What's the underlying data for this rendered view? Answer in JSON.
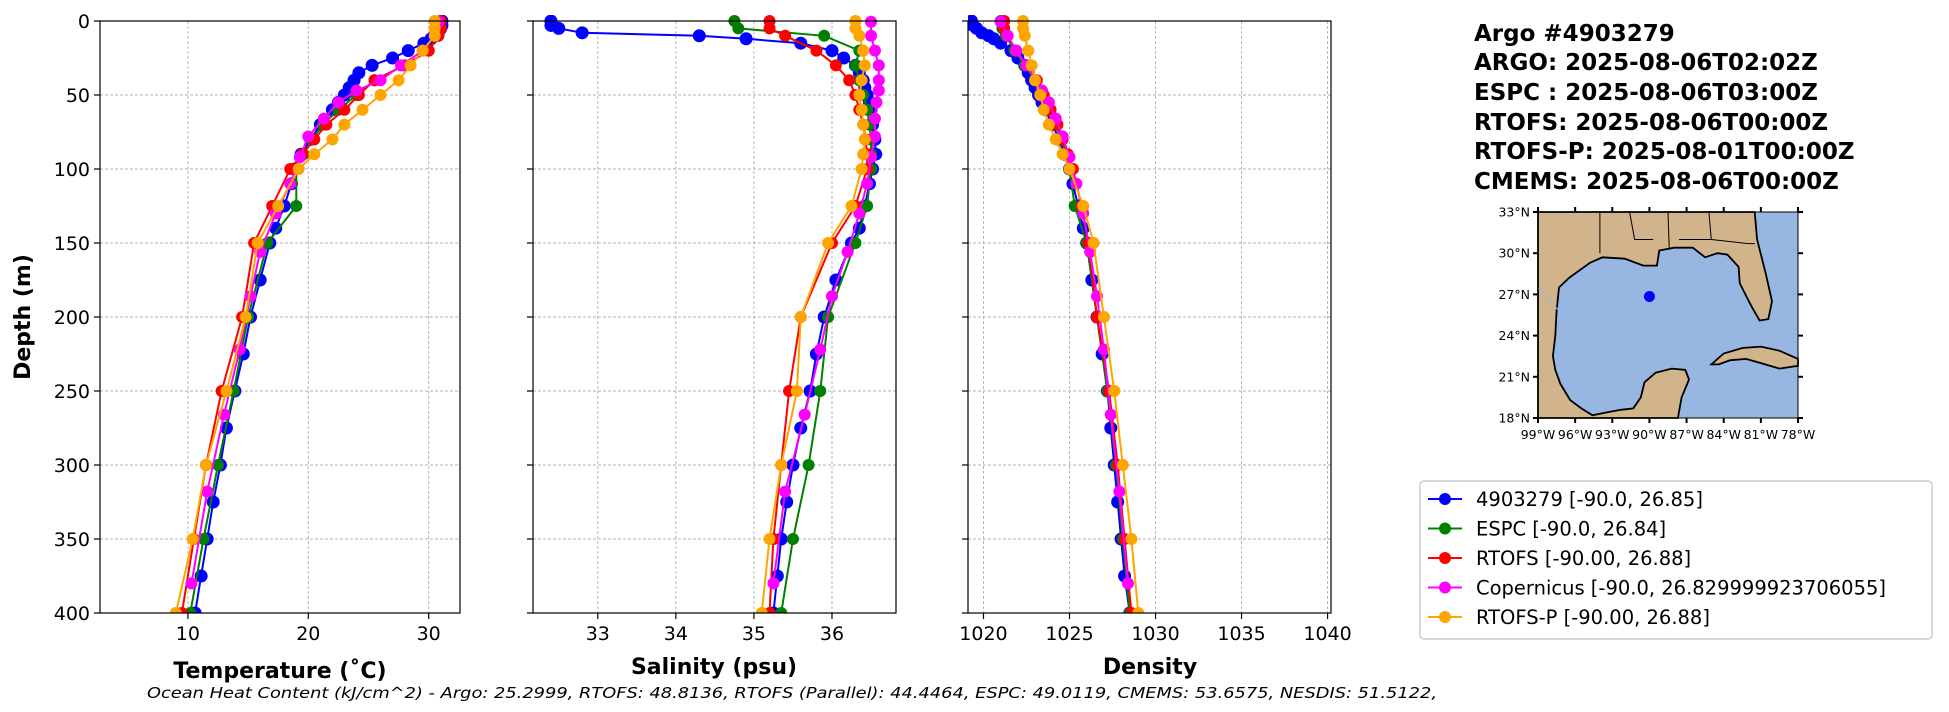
{
  "title_lines": [
    "Argo #4903279",
    "ARGO: 2025-08-06T02:02Z",
    "ESPC : 2025-08-06T03:00Z",
    "RTOFS: 2025-08-06T00:00Z",
    "RTOFS-P: 2025-08-01T00:00Z",
    "CMEMS: 2025-08-06T00:00Z"
  ],
  "footer": "Ocean Heat Content (kJ/cm^2) - Argo: 25.2999,  RTOFS: 48.8136,  RTOFS (Parallel): 44.4464,  ESPC: 49.0119,  CMEMS: 53.6575,  NESDIS: 51.5122,",
  "chart_data": [
    {
      "type": "line",
      "id": "temp",
      "xlabel": "Temperature (˚C)",
      "ylabel": "Depth (m)",
      "xlim": [
        2.7,
        32.6
      ],
      "ylim": [
        400,
        0
      ],
      "xticks": [
        10,
        20,
        30
      ],
      "yticks": [
        0,
        50,
        100,
        150,
        200,
        250,
        300,
        350,
        400
      ],
      "grid": true,
      "field": "temp"
    },
    {
      "type": "line",
      "id": "sal",
      "xlabel": "Salinity (psu)",
      "ylabel": "",
      "xlim": [
        32.17,
        36.82
      ],
      "ylim": [
        400,
        0
      ],
      "xticks": [
        33,
        34,
        35,
        36
      ],
      "yticks": [
        0,
        50,
        100,
        150,
        200,
        250,
        300,
        350,
        400
      ],
      "grid": true,
      "field": "sal"
    },
    {
      "type": "line",
      "id": "dens",
      "xlabel": "Density",
      "ylabel": "",
      "xlim": [
        1019.1,
        1040.2
      ],
      "ylim": [
        400,
        0
      ],
      "xticks": [
        1020,
        1025,
        1030,
        1035,
        1040
      ],
      "yticks": [
        0,
        50,
        100,
        150,
        200,
        250,
        300,
        350,
        400
      ],
      "grid": true,
      "field": "dens"
    }
  ],
  "series": [
    {
      "name": "4903279",
      "legend": "4903279 [-90.0, 26.85]",
      "color": "#0000ff",
      "depth": [
        0,
        3,
        5,
        8,
        10,
        12,
        15,
        20,
        25,
        30,
        35,
        40,
        45,
        50,
        55,
        60,
        70,
        80,
        90,
        100,
        110,
        125,
        140,
        150,
        175,
        200,
        225,
        250,
        275,
        300,
        325,
        350,
        375,
        400
      ],
      "temp": [
        31.1,
        31.1,
        31,
        30.8,
        30.5,
        30.2,
        29.6,
        28.3,
        27,
        25.3,
        24.2,
        23.8,
        23.4,
        23,
        22.5,
        22,
        21,
        20.2,
        19.4,
        18.9,
        18.6,
        18,
        17.3,
        16.8,
        16,
        15.2,
        14.6,
        13.9,
        13.2,
        12.7,
        12.1,
        11.6,
        11.1,
        10.6
      ],
      "sal": [
        32.4,
        32.4,
        32.5,
        32.8,
        34.3,
        34.9,
        35.6,
        36.0,
        36.15,
        36.3,
        36.35,
        36.4,
        36.42,
        36.45,
        36.48,
        36.5,
        36.52,
        36.55,
        36.56,
        36.52,
        36.48,
        36.42,
        36.35,
        36.25,
        36.05,
        35.9,
        35.8,
        35.72,
        35.6,
        35.5,
        35.42,
        35.35,
        35.3,
        35.25
      ],
      "dens": [
        1019.3,
        1019.4,
        1019.6,
        1019.9,
        1020.3,
        1020.6,
        1021,
        1021.6,
        1022,
        1022.4,
        1022.6,
        1022.8,
        1023,
        1023.2,
        1023.4,
        1023.6,
        1024,
        1024.4,
        1024.7,
        1025,
        1025.2,
        1025.5,
        1025.8,
        1026,
        1026.3,
        1026.6,
        1026.9,
        1027.2,
        1027.4,
        1027.6,
        1027.8,
        1028,
        1028.2,
        1028.5
      ]
    },
    {
      "name": "ESPC",
      "legend": "ESPC [-90.0, 26.84]",
      "color": "#008000",
      "depth": [
        0,
        5,
        10,
        20,
        30,
        40,
        50,
        60,
        70,
        80,
        90,
        100,
        125,
        150,
        200,
        250,
        300,
        350,
        400
      ],
      "temp": [
        31.0,
        31.0,
        30.8,
        30.0,
        28.0,
        25.5,
        24.0,
        22.5,
        21.2,
        20.3,
        19.6,
        19.0,
        19.0,
        16.6,
        15.0,
        13.8,
        12.5,
        11.3,
        10.2
      ],
      "sal": [
        34.75,
        34.8,
        35.9,
        36.35,
        36.3,
        36.35,
        36.4,
        36.45,
        36.48,
        36.5,
        36.5,
        36.5,
        36.45,
        36.3,
        35.95,
        35.85,
        35.7,
        35.5,
        35.35
      ],
      "dens": [
        1021,
        1021.1,
        1021.3,
        1021.8,
        1022.4,
        1023,
        1023.4,
        1023.8,
        1024.2,
        1024.5,
        1024.8,
        1025,
        1025.3,
        1026,
        1026.6,
        1027.2,
        1027.7,
        1028.1,
        1028.5
      ]
    },
    {
      "name": "RTOFS",
      "legend": "RTOFS [-90.00, 26.88]",
      "color": "#ff0000",
      "depth": [
        0,
        5,
        10,
        20,
        30,
        40,
        50,
        60,
        70,
        80,
        90,
        100,
        125,
        150,
        200,
        250,
        300,
        350,
        400
      ],
      "temp": [
        31.0,
        31.0,
        30.8,
        30.0,
        28.0,
        25.5,
        24.2,
        23.0,
        21.5,
        20.5,
        19.5,
        18.5,
        17.0,
        15.5,
        14.5,
        12.8,
        11.5,
        10.5,
        9.5
      ],
      "sal": [
        35.2,
        35.2,
        35.4,
        35.8,
        36.05,
        36.22,
        36.3,
        36.35,
        36.4,
        36.43,
        36.45,
        36.45,
        36.3,
        36.0,
        35.6,
        35.45,
        35.35,
        35.25,
        35.2
      ],
      "dens": [
        1021.2,
        1021.2,
        1021.4,
        1021.9,
        1022.5,
        1023.1,
        1023.5,
        1023.9,
        1024.3,
        1024.6,
        1024.9,
        1025.2,
        1025.7,
        1026.1,
        1026.6,
        1027.3,
        1027.8,
        1028.2,
        1028.6
      ]
    },
    {
      "name": "Copernicus",
      "legend": "Copernicus [-90.0, 26.829999923706055]",
      "color": "#ff00ff",
      "depth": [
        0.5,
        10,
        20,
        30,
        40,
        47,
        55,
        66,
        78,
        92,
        110,
        130,
        156,
        186,
        222,
        266,
        318,
        380
      ],
      "temp": [
        30.8,
        30.5,
        29.5,
        27.7,
        26.0,
        24.0,
        22.5,
        21.3,
        20.0,
        19.3,
        18.5,
        17.3,
        16.0,
        15.2,
        14.3,
        13.0,
        11.6,
        10.3
      ],
      "sal": [
        36.5,
        36.5,
        36.55,
        36.6,
        36.6,
        36.6,
        36.57,
        36.55,
        36.55,
        36.5,
        36.45,
        36.35,
        36.2,
        36.0,
        35.85,
        35.65,
        35.4,
        35.25
      ],
      "dens": [
        1021.0,
        1021.4,
        1021.9,
        1022.5,
        1023.0,
        1023.4,
        1023.8,
        1024.2,
        1024.6,
        1025,
        1025.4,
        1025.8,
        1026.2,
        1026.6,
        1027,
        1027.4,
        1027.9,
        1028.4
      ]
    },
    {
      "name": "RTOFS-P",
      "legend": "RTOFS-P [-90.00, 26.88]",
      "color": "#ffa500",
      "depth": [
        0,
        5,
        10,
        20,
        30,
        40,
        50,
        60,
        70,
        80,
        90,
        100,
        125,
        150,
        200,
        250,
        300,
        350,
        400
      ],
      "temp": [
        30.5,
        30.5,
        30.5,
        29.5,
        28.5,
        27.5,
        26.0,
        24.5,
        23.0,
        22.0,
        20.5,
        19.2,
        17.5,
        15.8,
        14.8,
        13.2,
        11.5,
        10.4,
        9.0
      ],
      "sal": [
        36.3,
        36.3,
        36.35,
        36.4,
        36.42,
        36.38,
        36.35,
        36.38,
        36.4,
        36.42,
        36.4,
        36.38,
        36.25,
        35.95,
        35.6,
        35.55,
        35.35,
        35.2,
        35.1
      ],
      "dens": [
        1022.3,
        1022.3,
        1022.4,
        1022.6,
        1022.8,
        1023.0,
        1023.3,
        1023.5,
        1023.8,
        1024.2,
        1024.6,
        1025,
        1025.8,
        1026.4,
        1027,
        1027.6,
        1028.1,
        1028.6,
        1029.0
      ]
    }
  ],
  "map": {
    "lon_range": [
      -99,
      -78
    ],
    "lat_range": [
      18,
      33
    ],
    "lon_ticks": [
      "99°W",
      "96°W",
      "93°W",
      "90°W",
      "87°W",
      "84°W",
      "81°W",
      "78°W"
    ],
    "lat_ticks": [
      "33°N",
      "30°N",
      "27°N",
      "24°N",
      "21°N",
      "18°N"
    ],
    "float_position": [
      -90.0,
      26.85
    ],
    "float_color": "#0000ff",
    "land_color": "#d2b48c",
    "water_color": "#97b6e1"
  }
}
